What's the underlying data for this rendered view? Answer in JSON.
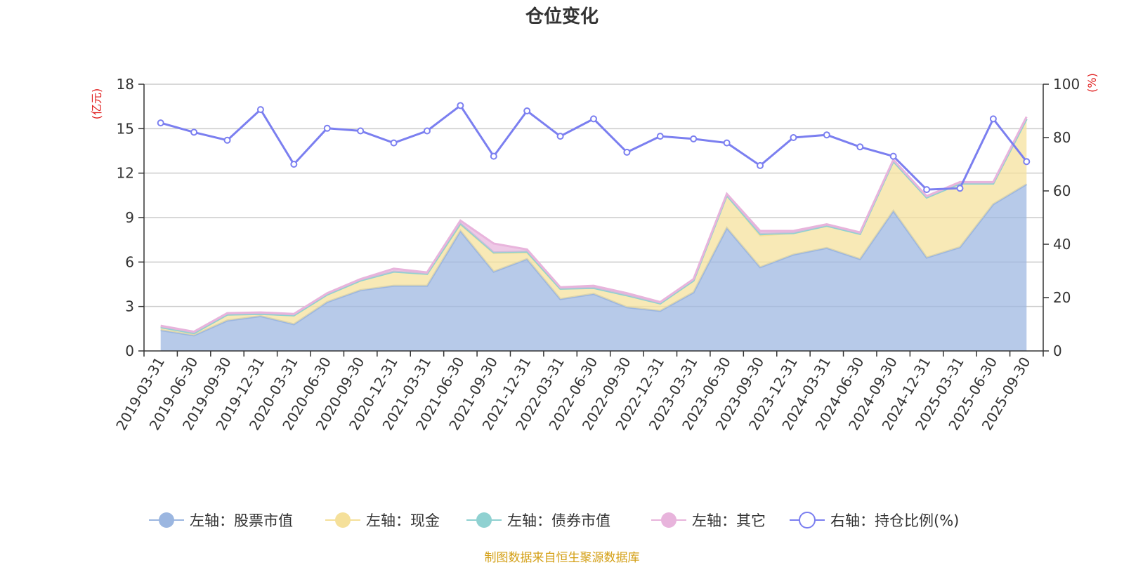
{
  "chart_data": {
    "type": "area",
    "title": "仓位变化",
    "left_axis": {
      "unit": "(亿元)",
      "ticks": [
        0,
        3,
        6,
        9,
        12,
        15,
        18
      ],
      "ylim": [
        0,
        18
      ],
      "color": "#e02020"
    },
    "right_axis": {
      "unit": "(%)",
      "ticks": [
        0,
        20,
        40,
        60,
        80,
        100
      ],
      "ylim": [
        0,
        100
      ],
      "color": "#e02020"
    },
    "categories": [
      "2019-03-31",
      "2019-06-30",
      "2019-09-30",
      "2019-12-31",
      "2020-03-31",
      "2020-06-30",
      "2020-09-30",
      "2020-12-31",
      "2021-03-31",
      "2021-06-30",
      "2021-09-30",
      "2021-12-31",
      "2022-03-31",
      "2022-06-30",
      "2022-09-30",
      "2022-12-31",
      "2023-03-31",
      "2023-06-30",
      "2023-09-30",
      "2023-12-31",
      "2024-03-31",
      "2024-06-30",
      "2024-09-30",
      "2024-12-31",
      "2025-03-31",
      "2025-06-30",
      "2025-09-30"
    ],
    "series": [
      {
        "name": "左轴：股票市值",
        "axis": "left",
        "kind": "stacked-area",
        "color": "#9bb6e0",
        "values": [
          1.4,
          1.05,
          2.05,
          2.35,
          1.8,
          3.3,
          4.1,
          4.4,
          4.4,
          8.1,
          5.35,
          6.2,
          3.5,
          3.85,
          2.95,
          2.7,
          3.95,
          8.3,
          5.65,
          6.5,
          6.95,
          6.2,
          9.45,
          6.3,
          7.0,
          9.9,
          11.25
        ]
      },
      {
        "name": "左轴：现金",
        "axis": "left",
        "kind": "stacked-area",
        "color": "#f5e09a",
        "values": [
          0.2,
          0.15,
          0.4,
          0.15,
          0.6,
          0.5,
          0.65,
          0.95,
          0.8,
          0.45,
          1.25,
          0.45,
          0.7,
          0.4,
          0.8,
          0.5,
          0.8,
          2.2,
          2.15,
          1.45,
          1.5,
          1.7,
          3.35,
          4.05,
          4.3,
          1.4,
          4.4
        ]
      },
      {
        "name": "左轴：债券市值",
        "axis": "left",
        "kind": "stacked-area",
        "color": "#8fd1d1",
        "values": [
          0,
          0,
          0,
          0,
          0,
          0,
          0,
          0,
          0,
          0.05,
          0.05,
          0.05,
          0,
          0,
          0,
          0,
          0,
          0,
          0.1,
          0,
          0,
          0,
          0,
          0,
          0,
          0,
          0
        ]
      },
      {
        "name": "左轴：其它",
        "axis": "left",
        "kind": "stacked-area",
        "color": "#e8b4dc",
        "values": [
          0.1,
          0.1,
          0.1,
          0.1,
          0.1,
          0.1,
          0.1,
          0.2,
          0.1,
          0.2,
          0.6,
          0.15,
          0.1,
          0.15,
          0.15,
          0.1,
          0.1,
          0.1,
          0.2,
          0.15,
          0.1,
          0.1,
          0.1,
          0.1,
          0.1,
          0.1,
          0.15
        ]
      },
      {
        "name": "右轴：持仓比例(%)",
        "axis": "right",
        "kind": "line",
        "color": "#7b7ff0",
        "values": [
          85.5,
          82,
          79,
          90.5,
          70,
          83.5,
          82.5,
          78,
          82.5,
          92,
          73,
          90,
          80.5,
          87,
          74.5,
          80.5,
          79.5,
          78,
          69.5,
          80,
          81,
          76.5,
          73,
          60.5,
          61,
          87,
          71
        ]
      }
    ],
    "source_note": "制图数据来自恒生聚源数据库"
  }
}
